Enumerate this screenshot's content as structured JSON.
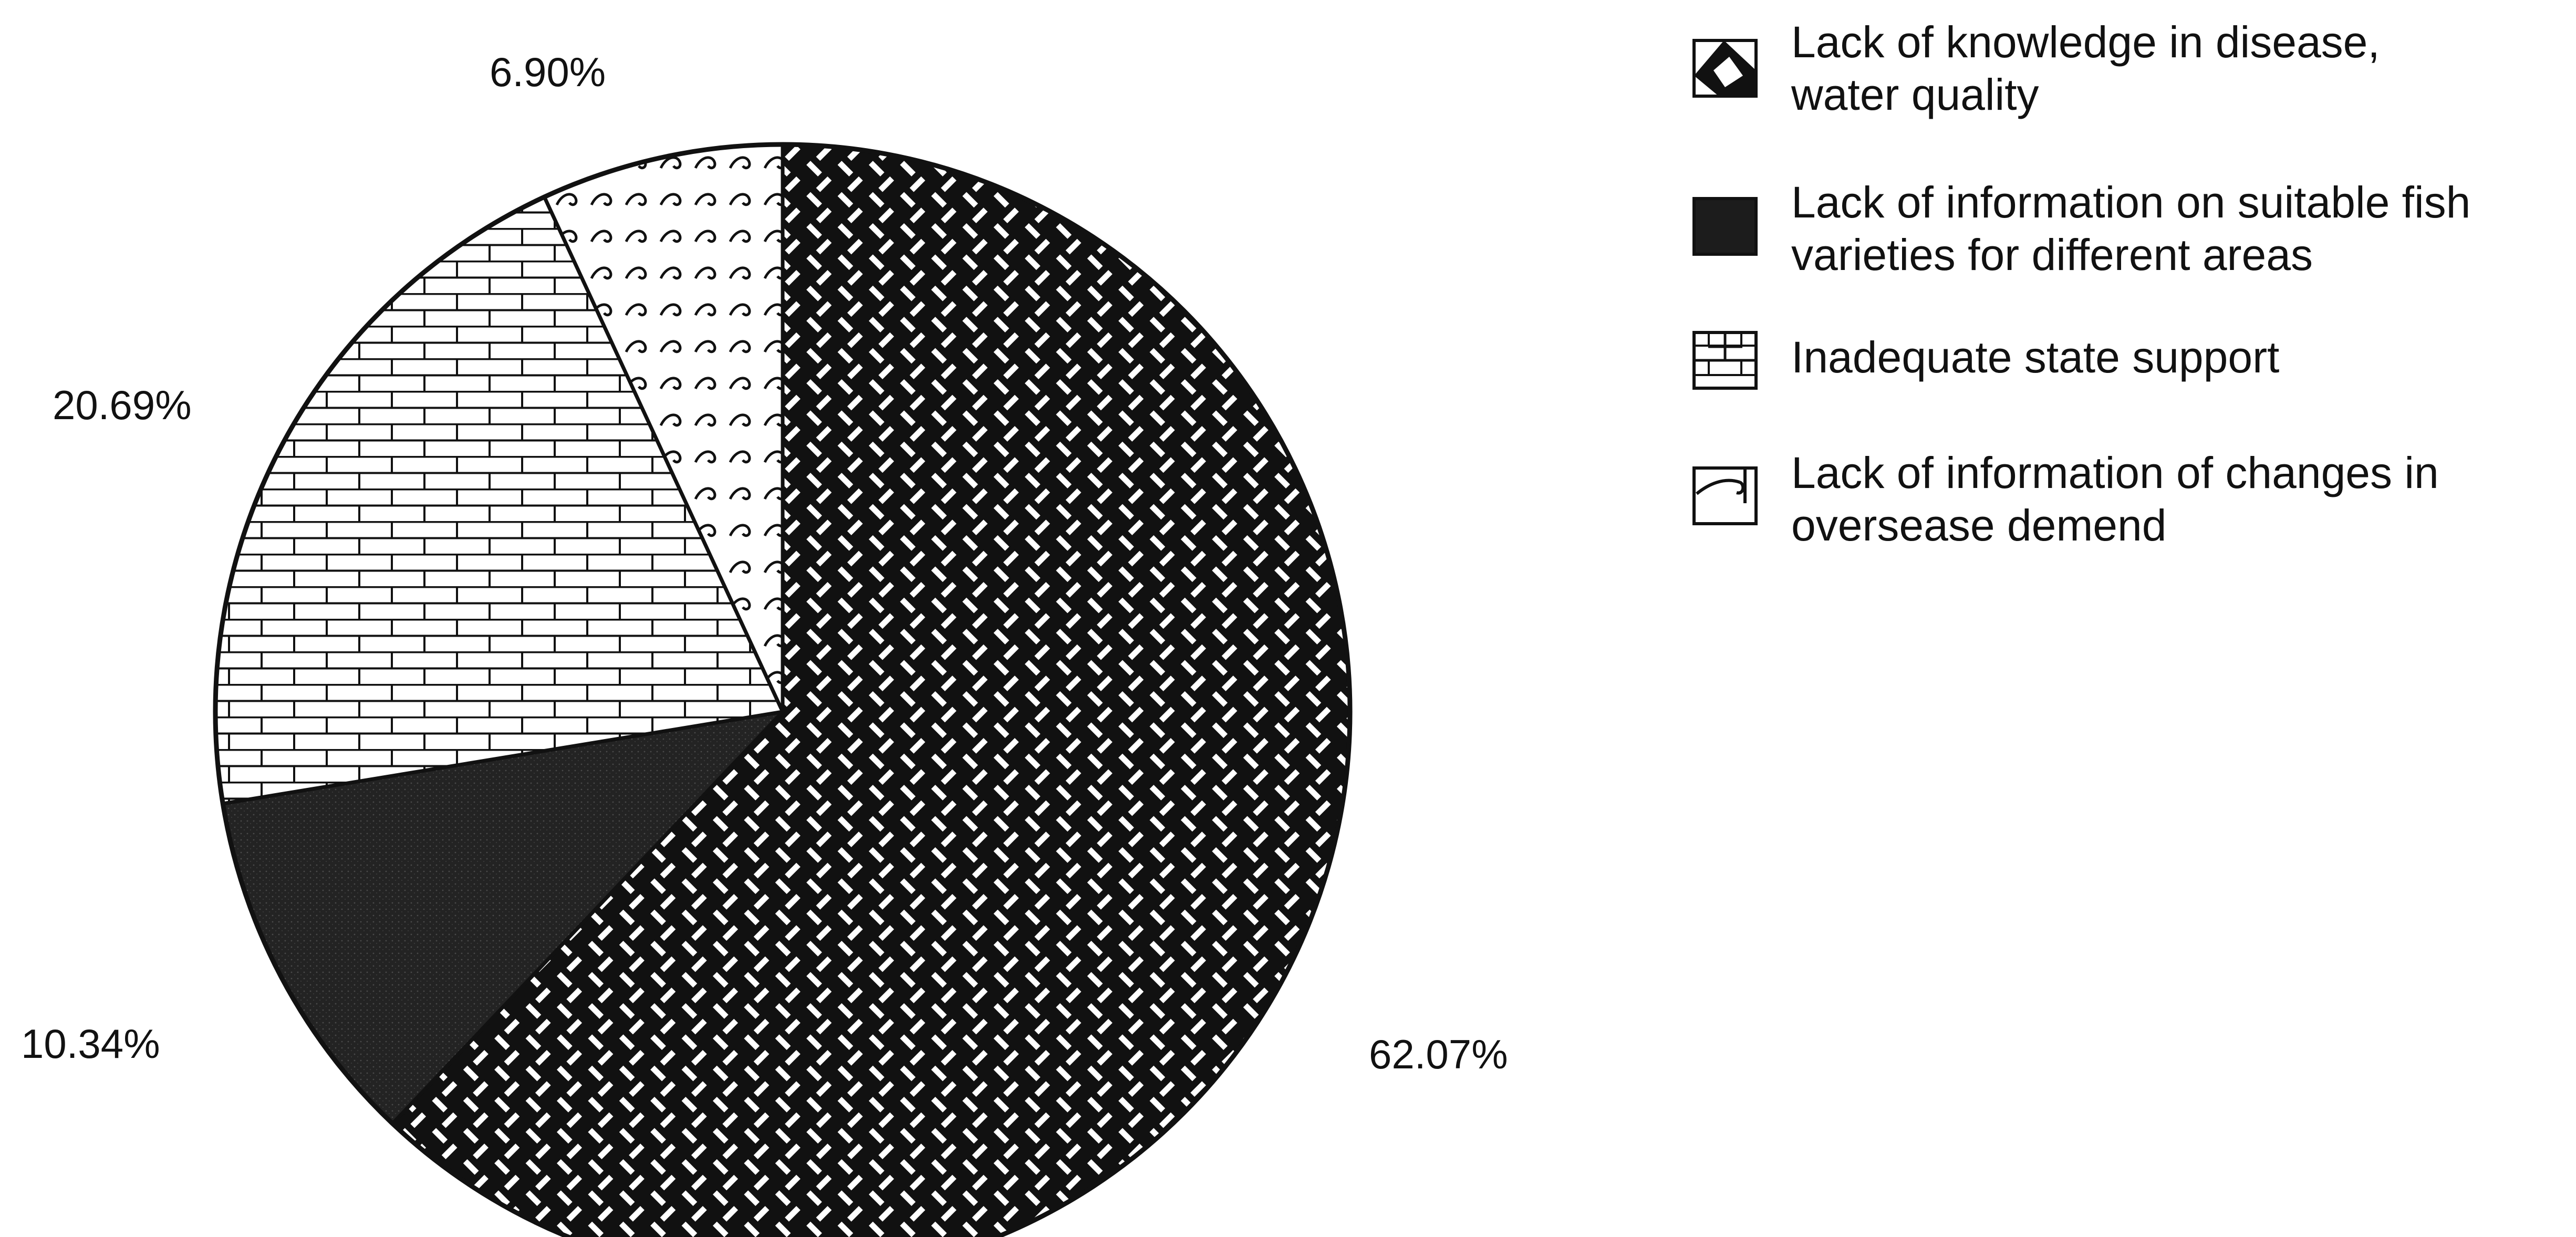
{
  "chart_data": {
    "type": "pie",
    "slices": [
      {
        "label": "Lack of knowledge in disease, water quality",
        "value": 62.07,
        "value_label": "62.07%",
        "pattern": "weave"
      },
      {
        "label": "Lack of information on suitable fish varieties for different areas",
        "value": 10.34,
        "value_label": "10.34%",
        "pattern": "solid-dark"
      },
      {
        "label": "Inadequate state support",
        "value": 20.69,
        "value_label": "20.69%",
        "pattern": "brick"
      },
      {
        "label": "Lack of information of changes in oversease demend",
        "value": 6.9,
        "value_label": "6.90%",
        "pattern": "waves"
      }
    ],
    "legend": {
      "placement": "top-right",
      "items": [
        {
          "lines": [
            "Lack of knowledge in disease,",
            "water quality"
          ]
        },
        {
          "lines": [
            "Lack of information on suitable fish",
            "varieties for different areas"
          ]
        },
        {
          "lines": [
            "Inadequate state support"
          ]
        },
        {
          "lines": [
            "Lack of information of changes in",
            "oversease demend"
          ]
        }
      ]
    },
    "colors": {
      "ink": "#111111",
      "dark_fill": "#232323",
      "background": "#ffffff"
    }
  }
}
